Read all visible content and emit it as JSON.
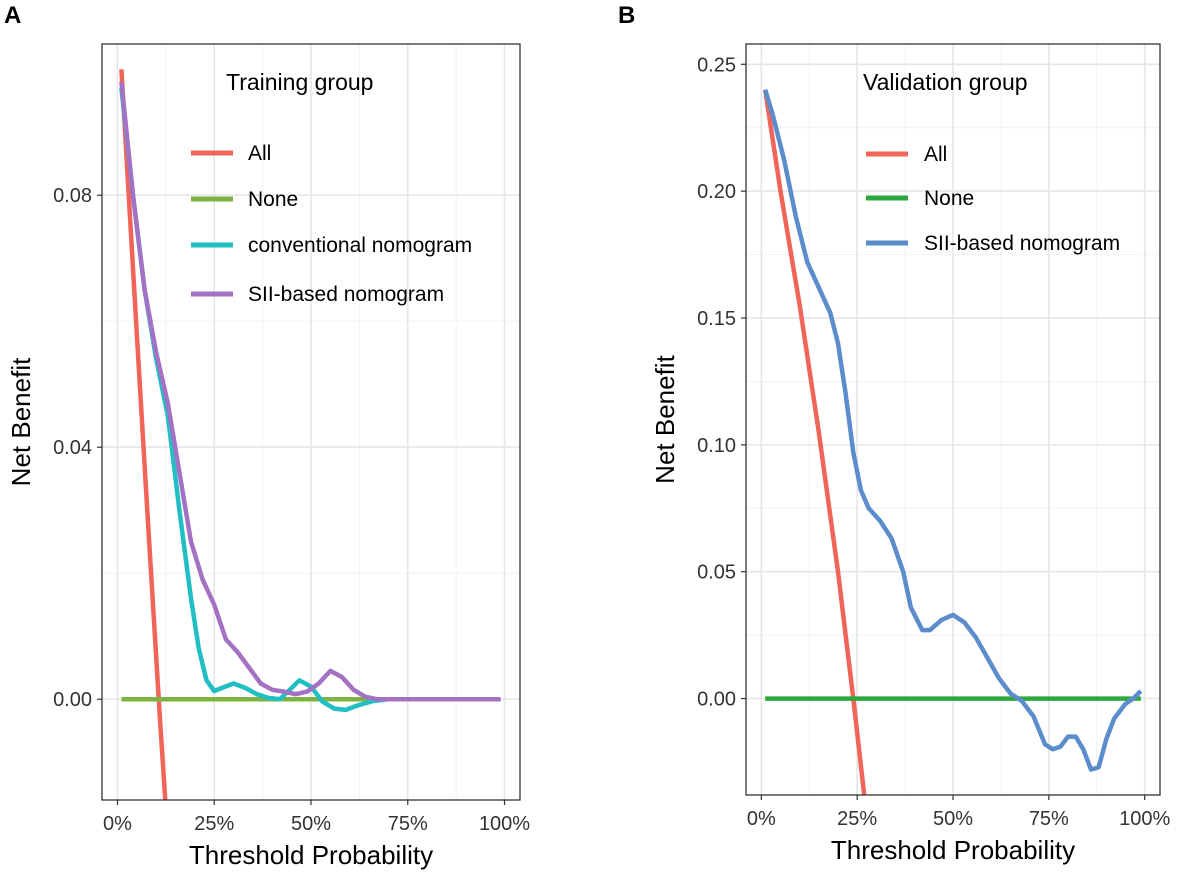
{
  "panels": {
    "A": {
      "letter": "A"
    },
    "B": {
      "letter": "B"
    }
  },
  "chart_data": [
    {
      "type": "line",
      "panel": "A",
      "title": "Training group",
      "xlabel": "Threshold Probability",
      "ylabel": "Net Benefit",
      "xlim": [
        -0.04,
        1.04
      ],
      "ylim": [
        -0.016,
        0.104
      ],
      "xticks": [
        0,
        0.25,
        0.5,
        0.75,
        1.0
      ],
      "xtick_labels": [
        "0%",
        "25%",
        "50%",
        "75%",
        "100%"
      ],
      "yticks": [
        0,
        0.04,
        0.08
      ],
      "ytick_labels": [
        "0.00",
        "0.04",
        "0.08"
      ],
      "legend_title": "Training group",
      "series": [
        {
          "name": "All",
          "color": "#f0645a",
          "x": [
            0.01,
            0.05,
            0.08,
            0.11,
            0.125
          ],
          "y": [
            0.1,
            0.058,
            0.027,
            -0.0035,
            -0.0175
          ]
        },
        {
          "name": "None",
          "color": "#7cb342",
          "x": [
            0.01,
            0.99
          ],
          "y": [
            0,
            0
          ]
        },
        {
          "name": "conventional nomogram",
          "color": "#1fbfc4",
          "x": [
            0.01,
            0.04,
            0.07,
            0.1,
            0.13,
            0.16,
            0.19,
            0.21,
            0.23,
            0.25,
            0.27,
            0.3,
            0.33,
            0.36,
            0.39,
            0.42,
            0.44,
            0.47,
            0.5,
            0.53,
            0.56,
            0.59,
            0.62,
            0.66,
            0.7,
            0.75,
            0.8,
            0.9,
            0.99
          ],
          "y": [
            0.097,
            0.08,
            0.065,
            0.054,
            0.045,
            0.03,
            0.016,
            0.008,
            0.003,
            0.0013,
            0.0018,
            0.0025,
            0.0018,
            0.0008,
            0.0002,
            0.0,
            0.0012,
            0.003,
            0.002,
            -0.0004,
            -0.0015,
            -0.0017,
            -0.001,
            -0.0003,
            0.0,
            0.0,
            0.0,
            0.0,
            0.0
          ]
        },
        {
          "name": "SII-based nomogram",
          "color": "#a472c4",
          "x": [
            0.01,
            0.04,
            0.07,
            0.1,
            0.13,
            0.16,
            0.19,
            0.22,
            0.25,
            0.28,
            0.31,
            0.34,
            0.37,
            0.4,
            0.43,
            0.46,
            0.49,
            0.52,
            0.55,
            0.58,
            0.61,
            0.64,
            0.67,
            0.7,
            0.8,
            0.9,
            0.99
          ],
          "y": [
            0.098,
            0.08,
            0.065,
            0.055,
            0.047,
            0.036,
            0.025,
            0.019,
            0.015,
            0.0095,
            0.0075,
            0.005,
            0.0025,
            0.0015,
            0.0012,
            0.0008,
            0.0012,
            0.0025,
            0.0045,
            0.0035,
            0.0015,
            0.0004,
            0.0,
            0.0,
            0.0,
            0.0,
            0.0
          ]
        }
      ]
    },
    {
      "type": "line",
      "panel": "B",
      "title": "Validation group",
      "xlabel": "Threshold Probability",
      "ylabel": "Net Benefit",
      "xlim": [
        -0.04,
        1.04
      ],
      "ylim": [
        -0.038,
        0.258
      ],
      "xticks": [
        0,
        0.25,
        0.5,
        0.75,
        1.0
      ],
      "xtick_labels": [
        "0%",
        "25%",
        "50%",
        "75%",
        "100%"
      ],
      "yticks": [
        0,
        0.05,
        0.1,
        0.15,
        0.2,
        0.25
      ],
      "ytick_labels": [
        "0.00",
        "0.05",
        "0.10",
        "0.15",
        "0.20",
        "0.25"
      ],
      "legend_title": "Validation group",
      "series": [
        {
          "name": "All",
          "color": "#f0645a",
          "x": [
            0.01,
            0.05,
            0.1,
            0.15,
            0.2,
            0.24,
            0.27
          ],
          "y": [
            0.24,
            0.2,
            0.155,
            0.105,
            0.05,
            0.0,
            -0.04
          ]
        },
        {
          "name": "None",
          "color": "#2ca83c",
          "x": [
            0.01,
            0.99
          ],
          "y": [
            0,
            0
          ]
        },
        {
          "name": "SII-based nomogram",
          "color": "#5b8ccc",
          "x": [
            0.01,
            0.03,
            0.06,
            0.09,
            0.12,
            0.15,
            0.18,
            0.2,
            0.22,
            0.24,
            0.26,
            0.28,
            0.31,
            0.34,
            0.37,
            0.39,
            0.42,
            0.44,
            0.47,
            0.5,
            0.53,
            0.56,
            0.59,
            0.62,
            0.65,
            0.68,
            0.71,
            0.74,
            0.76,
            0.78,
            0.8,
            0.82,
            0.84,
            0.86,
            0.88,
            0.9,
            0.92,
            0.95,
            0.97,
            0.99
          ],
          "y": [
            0.24,
            0.23,
            0.212,
            0.19,
            0.172,
            0.162,
            0.152,
            0.14,
            0.12,
            0.097,
            0.082,
            0.075,
            0.07,
            0.063,
            0.05,
            0.036,
            0.027,
            0.027,
            0.031,
            0.033,
            0.03,
            0.024,
            0.016,
            0.008,
            0.002,
            -0.001,
            -0.007,
            -0.018,
            -0.02,
            -0.019,
            -0.015,
            -0.015,
            -0.02,
            -0.028,
            -0.027,
            -0.016,
            -0.008,
            -0.002,
            0.0,
            0.003
          ]
        }
      ]
    }
  ]
}
